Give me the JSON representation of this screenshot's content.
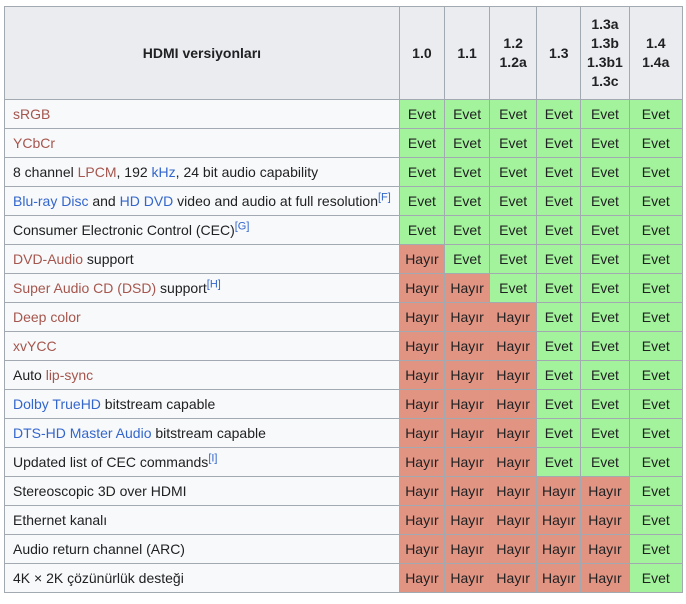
{
  "table": {
    "title": "HDMI versiyonları",
    "yes_label": "Evet",
    "no_label": "Hayır",
    "colors": {
      "yes_bg": "#a3f39c",
      "no_bg": "#e29483",
      "header_bg": "#eaecf0",
      "label_bg": "#f8f9fa",
      "border": "#a2a9b1",
      "link_blue": "#3366cc",
      "link_red": "#a5564e",
      "text": "#202122"
    },
    "header": {
      "label": "HDMI versiyonları",
      "columns": [
        {
          "id": "1.0",
          "lines": [
            "1.0"
          ]
        },
        {
          "id": "1.1",
          "lines": [
            "1.1"
          ]
        },
        {
          "id": "1.2",
          "lines": [
            "1.2",
            "1.2a"
          ]
        },
        {
          "id": "1.3",
          "lines": [
            "1.3"
          ]
        },
        {
          "id": "1.3a",
          "lines": [
            "1.3a",
            "1.3b",
            "1.3b1",
            "1.3c"
          ]
        },
        {
          "id": "1.4",
          "lines": [
            "1.4",
            "1.4a"
          ]
        }
      ]
    },
    "rows": [
      {
        "parts": [
          {
            "t": "sRGB",
            "c": "red"
          }
        ],
        "sup": null,
        "values": [
          "yes",
          "yes",
          "yes",
          "yes",
          "yes",
          "yes"
        ]
      },
      {
        "parts": [
          {
            "t": "YCbCr",
            "c": "red"
          }
        ],
        "sup": null,
        "values": [
          "yes",
          "yes",
          "yes",
          "yes",
          "yes",
          "yes"
        ]
      },
      {
        "parts": [
          {
            "t": "8 channel ",
            "c": "text"
          },
          {
            "t": "LPCM",
            "c": "red"
          },
          {
            "t": ", 192 ",
            "c": "text"
          },
          {
            "t": "kHz",
            "c": "blue"
          },
          {
            "t": ", 24 bit audio capability",
            "c": "text"
          }
        ],
        "sup": null,
        "values": [
          "yes",
          "yes",
          "yes",
          "yes",
          "yes",
          "yes"
        ]
      },
      {
        "parts": [
          {
            "t": "Blu-ray Disc",
            "c": "blue"
          },
          {
            "t": " and ",
            "c": "text"
          },
          {
            "t": "HD DVD",
            "c": "blue"
          },
          {
            "t": " video and audio at full resolution",
            "c": "text"
          }
        ],
        "sup": "[F]",
        "values": [
          "yes",
          "yes",
          "yes",
          "yes",
          "yes",
          "yes"
        ]
      },
      {
        "parts": [
          {
            "t": "Consumer Electronic Control (CEC)",
            "c": "text"
          }
        ],
        "sup": "[G]",
        "values": [
          "yes",
          "yes",
          "yes",
          "yes",
          "yes",
          "yes"
        ]
      },
      {
        "parts": [
          {
            "t": "DVD-Audio",
            "c": "red"
          },
          {
            "t": " support",
            "c": "text"
          }
        ],
        "sup": null,
        "values": [
          "no",
          "yes",
          "yes",
          "yes",
          "yes",
          "yes"
        ]
      },
      {
        "parts": [
          {
            "t": "Super Audio CD (DSD)",
            "c": "red"
          },
          {
            "t": " support",
            "c": "text"
          }
        ],
        "sup": "[H]",
        "values": [
          "no",
          "no",
          "yes",
          "yes",
          "yes",
          "yes"
        ]
      },
      {
        "parts": [
          {
            "t": "Deep color",
            "c": "red"
          }
        ],
        "sup": null,
        "values": [
          "no",
          "no",
          "no",
          "yes",
          "yes",
          "yes"
        ]
      },
      {
        "parts": [
          {
            "t": "xvYCC",
            "c": "red"
          }
        ],
        "sup": null,
        "values": [
          "no",
          "no",
          "no",
          "yes",
          "yes",
          "yes"
        ]
      },
      {
        "parts": [
          {
            "t": "Auto ",
            "c": "text"
          },
          {
            "t": "lip-sync",
            "c": "red"
          }
        ],
        "sup": null,
        "values": [
          "no",
          "no",
          "no",
          "yes",
          "yes",
          "yes"
        ]
      },
      {
        "parts": [
          {
            "t": "Dolby TrueHD",
            "c": "blue"
          },
          {
            "t": " bitstream capable",
            "c": "text"
          }
        ],
        "sup": null,
        "values": [
          "no",
          "no",
          "no",
          "yes",
          "yes",
          "yes"
        ]
      },
      {
        "parts": [
          {
            "t": "DTS-HD Master Audio",
            "c": "blue"
          },
          {
            "t": " bitstream capable",
            "c": "text"
          }
        ],
        "sup": null,
        "values": [
          "no",
          "no",
          "no",
          "yes",
          "yes",
          "yes"
        ]
      },
      {
        "parts": [
          {
            "t": "Updated list of CEC commands",
            "c": "text"
          }
        ],
        "sup": "[I]",
        "values": [
          "no",
          "no",
          "no",
          "yes",
          "yes",
          "yes"
        ]
      },
      {
        "parts": [
          {
            "t": "Stereoscopic 3D over HDMI",
            "c": "text"
          }
        ],
        "sup": null,
        "values": [
          "no",
          "no",
          "no",
          "no",
          "no",
          "yes"
        ]
      },
      {
        "parts": [
          {
            "t": "Ethernet kanalı",
            "c": "text"
          }
        ],
        "sup": null,
        "values": [
          "no",
          "no",
          "no",
          "no",
          "no",
          "yes"
        ]
      },
      {
        "parts": [
          {
            "t": "Audio return channel (ARC)",
            "c": "text"
          }
        ],
        "sup": null,
        "values": [
          "no",
          "no",
          "no",
          "no",
          "no",
          "yes"
        ]
      },
      {
        "parts": [
          {
            "t": "4K × 2K çözünürlük desteği",
            "c": "text"
          }
        ],
        "sup": null,
        "values": [
          "no",
          "no",
          "no",
          "no",
          "no",
          "yes"
        ]
      }
    ]
  }
}
